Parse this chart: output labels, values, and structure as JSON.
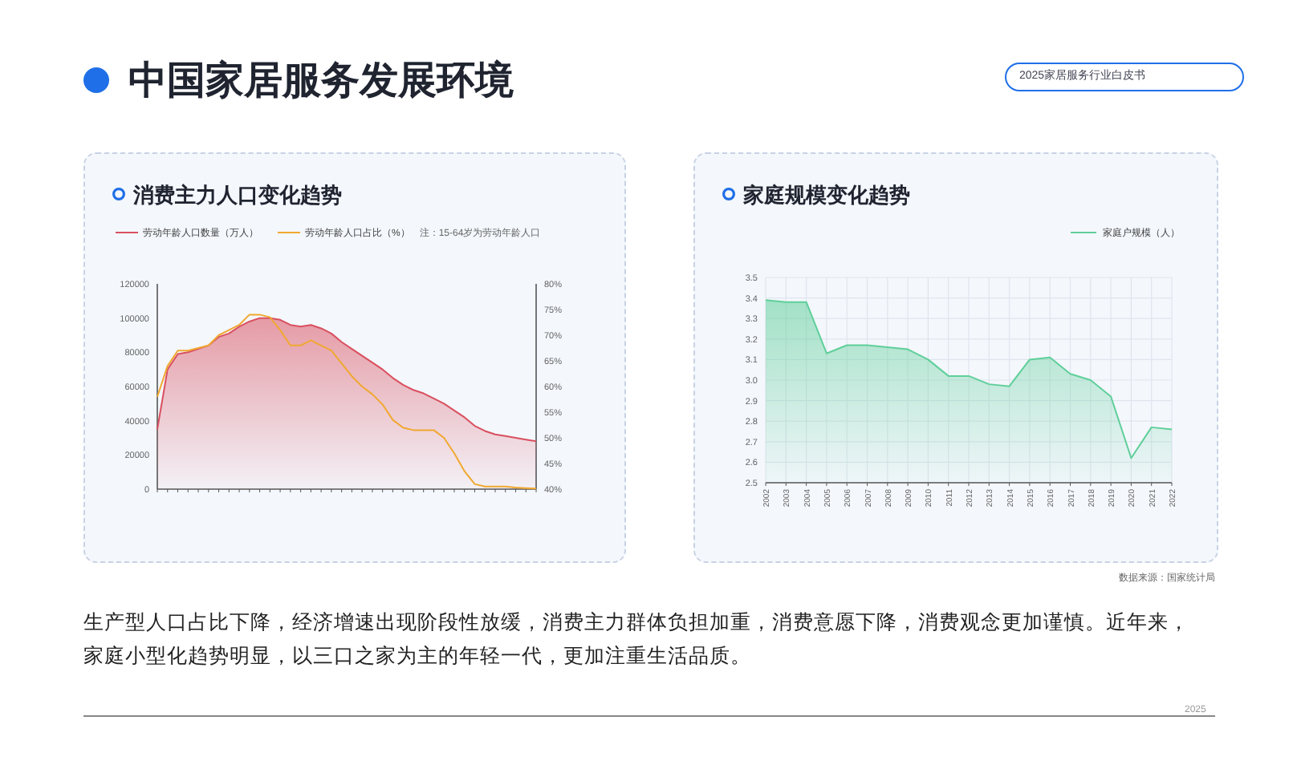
{
  "chart_data": [
    {
      "type": "other",
      "title": "中国家居服务发展环境",
      "annotations": [
        "2025家居服务行业白皮书"
      ]
    },
    {
      "type": "area",
      "title": "消费主力人口变化趋势",
      "categories": [
        null,
        null,
        null,
        null,
        null,
        null,
        null,
        null,
        null,
        null,
        null,
        null,
        null,
        null,
        null,
        null,
        null,
        null,
        null,
        null,
        null,
        null,
        null,
        null,
        null,
        null,
        null,
        null,
        null,
        null,
        null,
        null,
        null,
        null,
        null,
        null,
        null,
        null
      ],
      "series": [
        {
          "name": "劳动年龄人口数量（万人）",
          "type": "area",
          "color": "#d9505f",
          "values": [
            35000,
            70000,
            79000,
            80000,
            82000,
            84000,
            89000,
            91000,
            95000,
            98000,
            100000,
            100000,
            99000,
            96000,
            95000,
            96000,
            94000,
            91000,
            86000,
            82000,
            78000,
            74000,
            70000,
            65000,
            61000,
            58000,
            56000,
            53000,
            50000,
            46000,
            42000,
            37000,
            34000,
            32000,
            31000,
            30000,
            29000,
            28000
          ]
        },
        {
          "name": "劳动年龄人口占比（%）",
          "type": "line",
          "axis": "y2",
          "color": "#f0a830",
          "values": [
            58,
            64,
            67,
            67,
            67.5,
            68,
            70,
            71,
            72,
            74,
            74,
            73.5,
            71,
            68,
            68,
            69,
            68,
            67,
            64.5,
            62,
            60,
            58.5,
            56.5,
            53.5,
            52,
            51.5,
            51.5,
            51.5,
            50,
            47,
            43.5,
            41,
            40.5,
            40.5,
            40.5,
            40.3,
            40.2,
            40.1
          ]
        }
      ],
      "ylim": [
        0,
        120000
      ],
      "yticks": [
        0,
        20000,
        40000,
        60000,
        80000,
        100000,
        120000
      ],
      "y2lim": [
        40,
        80
      ],
      "y2ticks": [
        {
          "value": 40,
          "label": "40%"
        },
        {
          "value": 45,
          "label": "45%"
        },
        {
          "value": 50,
          "label": "50%"
        },
        {
          "value": 55,
          "label": "55%"
        },
        {
          "value": 60,
          "label": "60%"
        },
        {
          "value": 65,
          "label": "65%"
        },
        {
          "value": 70,
          "label": "70%"
        },
        {
          "value": 75,
          "label": "75%"
        },
        {
          "value": 80,
          "label": "80%"
        }
      ],
      "legend": "top left",
      "annotations": [
        "注：15-64岁为劳动年龄人口"
      ]
    },
    {
      "type": "area",
      "title": "家庭规模变化趋势",
      "categories": [
        "2002",
        "2003",
        "2004",
        "2005",
        "2006",
        "2007",
        "2008",
        "2009",
        "2010",
        "2011",
        "2012",
        "2013",
        "2014",
        "2015",
        "2016",
        "2017",
        "2018",
        "2019",
        "2020",
        "2021",
        "2022"
      ],
      "series": [
        {
          "name": "家庭户规模（人）",
          "color": "#5fcf9a",
          "values": [
            3.39,
            3.38,
            3.38,
            3.13,
            3.17,
            3.17,
            3.16,
            3.15,
            3.1,
            3.02,
            3.02,
            2.98,
            2.97,
            3.1,
            3.11,
            3.03,
            3.0,
            2.92,
            2.62,
            2.77,
            2.76
          ]
        }
      ],
      "ylim": [
        2.5,
        3.5
      ],
      "yticks": [
        2.5,
        2.6,
        2.7,
        2.8,
        2.9,
        {
          "value": 3,
          "label": "3.0"
        },
        3.1,
        3.2,
        3.3,
        3.4,
        3.5
      ],
      "grid": true,
      "legend": "top right",
      "annotations": [
        "数据来源：国家统计局"
      ]
    },
    {
      "type": "other",
      "annotations": [
        "生产型人口占比下降，经济增速出现阶段性放缓，消费主力群体负担加重，消费意愿下降，消费观念更加谨慎。近年来，家庭小型化趋势明显，以三口之家为主的年轻一代，更加注重生活品质。",
        "2025"
      ]
    }
  ]
}
